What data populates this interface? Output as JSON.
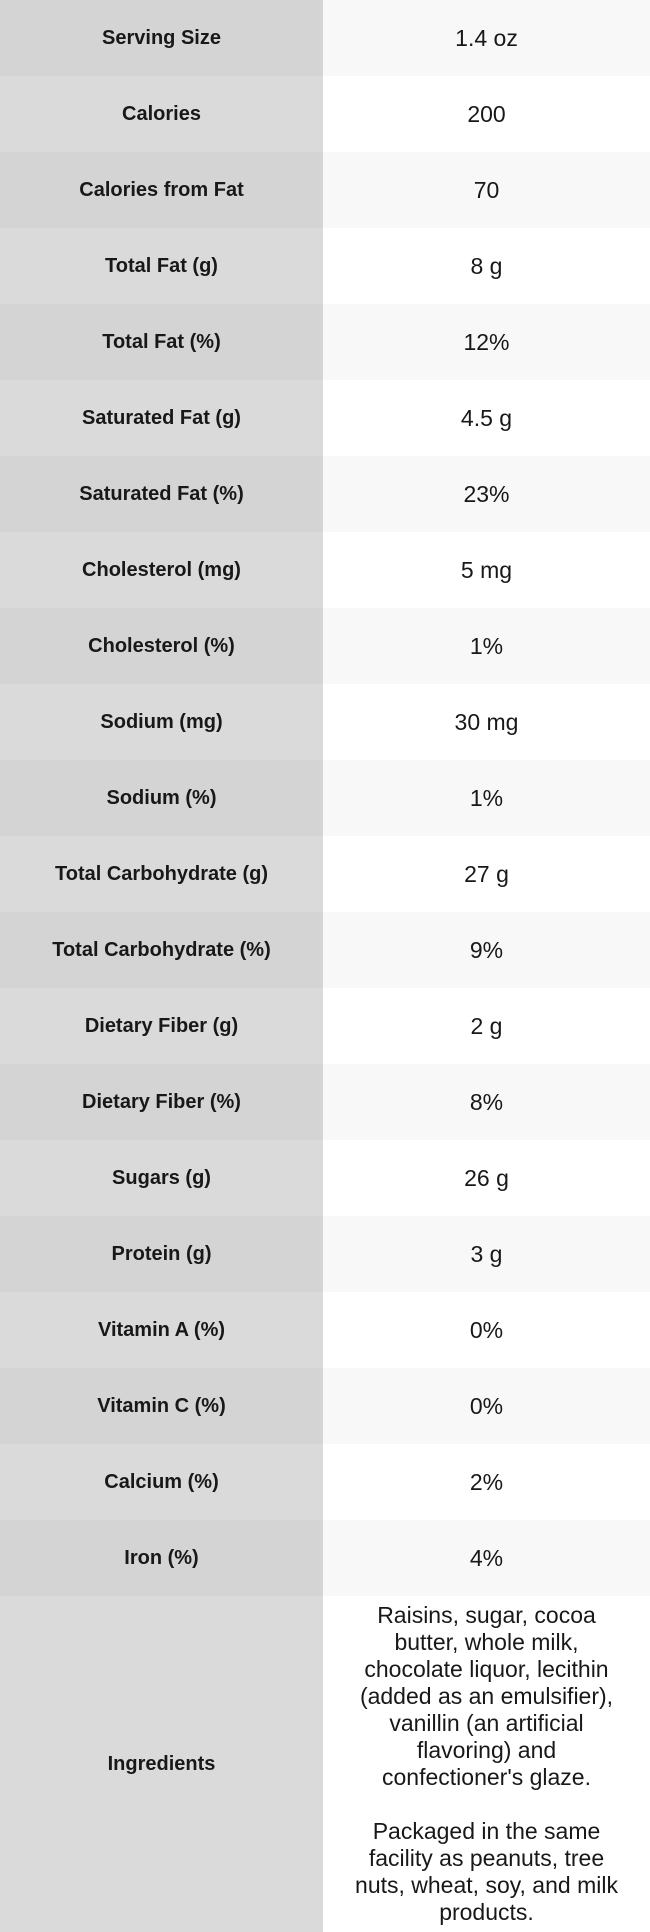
{
  "table": {
    "rows": [
      {
        "label": "Serving Size",
        "value": "1.4 oz"
      },
      {
        "label": "Calories",
        "value": "200"
      },
      {
        "label": "Calories from Fat",
        "value": "70"
      },
      {
        "label": "Total Fat (g)",
        "value": "8 g"
      },
      {
        "label": "Total Fat (%)",
        "value": "12%"
      },
      {
        "label": "Saturated Fat (g)",
        "value": "4.5 g"
      },
      {
        "label": "Saturated Fat (%)",
        "value": "23%"
      },
      {
        "label": "Cholesterol (mg)",
        "value": "5 mg"
      },
      {
        "label": "Cholesterol (%)",
        "value": "1%"
      },
      {
        "label": "Sodium (mg)",
        "value": "30 mg"
      },
      {
        "label": "Sodium (%)",
        "value": "1%"
      },
      {
        "label": "Total Carbohydrate (g)",
        "value": "27 g"
      },
      {
        "label": "Total Carbohydrate (%)",
        "value": "9%"
      },
      {
        "label": "Dietary Fiber (g)",
        "value": "2 g"
      },
      {
        "label": "Dietary Fiber (%)",
        "value": "8%"
      },
      {
        "label": "Sugars (g)",
        "value": "26 g"
      },
      {
        "label": "Protein (g)",
        "value": "3 g"
      },
      {
        "label": "Vitamin A (%)",
        "value": "0%"
      },
      {
        "label": "Vitamin C (%)",
        "value": "0%"
      },
      {
        "label": "Calcium (%)",
        "value": "2%"
      },
      {
        "label": "Iron (%)",
        "value": "4%"
      }
    ],
    "ingredients": {
      "label": "Ingredients",
      "paragraph1": "Raisins, sugar, cocoa butter, whole milk, chocolate liquor, lecithin (added as an emulsifier), vanillin (an artificial flavoring) and confectioner's glaze.",
      "paragraph2": "Packaged in the same facility as peanuts, tree nuts, wheat, soy, and milk products."
    }
  },
  "colors": {
    "label_column_odd": "#d4d4d4",
    "label_column_even": "#dadada",
    "value_column_odd": "#f8f8f8",
    "value_column_even": "#ffffff",
    "text": "#181818"
  }
}
